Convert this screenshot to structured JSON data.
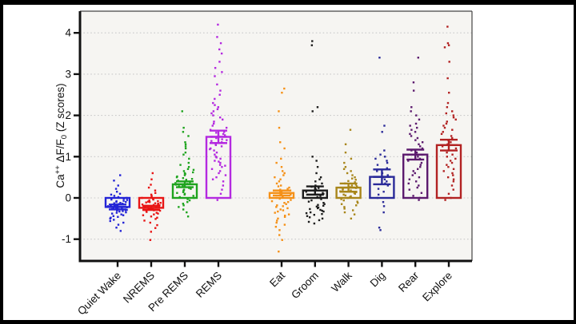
{
  "figure": {
    "frame_color": "#000000",
    "background": "#ffffff",
    "panel_background": "#f6f5f2",
    "gridline_color": "#c9c9c9",
    "axis_color": "#111111"
  },
  "chart_data": {
    "type": "bar",
    "overlay": "jittered-scatter-points",
    "title": "",
    "xlabel": "",
    "ylabel": "Ca++ ΔF/F0 (Z scores)",
    "ylabel_parts": {
      "pre": "Ca",
      "sup": "++",
      "mid": " ΔF/F",
      "sub": "0",
      "post": " (Z scores)"
    },
    "ylim": [
      -1.55,
      4.55
    ],
    "yticks": [
      4,
      3,
      2,
      1,
      0,
      -1
    ],
    "grid": "horizontal-dotted",
    "legend": "none",
    "bar_style": "open-outline-with-sem-error-bars",
    "group_break_after_index": 3,
    "categories": [
      {
        "key": "quiet_wake",
        "label": "Quiet Wake",
        "color": "#2323d6",
        "mean": -0.22,
        "sem": 0.06,
        "points": [
          0.55,
          0.42,
          0.3,
          0.22,
          0.15,
          0.1,
          0.08,
          0.05,
          0.02,
          0,
          -0.02,
          -0.04,
          -0.05,
          -0.07,
          -0.08,
          -0.1,
          -0.1,
          -0.12,
          -0.13,
          -0.14,
          -0.15,
          -0.16,
          -0.17,
          -0.18,
          -0.19,
          -0.2,
          -0.2,
          -0.21,
          -0.22,
          -0.23,
          -0.24,
          -0.25,
          -0.26,
          -0.27,
          -0.28,
          -0.29,
          -0.3,
          -0.31,
          -0.32,
          -0.33,
          -0.35,
          -0.36,
          -0.38,
          -0.4,
          -0.42,
          -0.44,
          -0.46,
          -0.48,
          -0.5,
          -0.53,
          -0.56,
          -0.6,
          -0.65,
          -0.72,
          -0.8
        ]
      },
      {
        "key": "nrems",
        "label": "NREMS",
        "color": "#e81414",
        "mean": -0.24,
        "sem": 0.05,
        "points": [
          0.6,
          0.45,
          0.32,
          0.25,
          0.18,
          0.12,
          0.08,
          0.05,
          0.02,
          0,
          -0.02,
          -0.04,
          -0.06,
          -0.08,
          -0.09,
          -0.1,
          -0.11,
          -0.12,
          -0.13,
          -0.14,
          -0.15,
          -0.16,
          -0.17,
          -0.18,
          -0.19,
          -0.2,
          -0.21,
          -0.22,
          -0.23,
          -0.24,
          -0.25,
          -0.26,
          -0.27,
          -0.28,
          -0.29,
          -0.3,
          -0.31,
          -0.32,
          -0.34,
          -0.36,
          -0.38,
          -0.4,
          -0.42,
          -0.45,
          -0.48,
          -0.51,
          -0.55,
          -0.6,
          -0.66,
          -0.73,
          -0.82,
          -1.02
        ]
      },
      {
        "key": "pre_rems",
        "label": "Pre REMS",
        "color": "#1ea41e",
        "mean": 0.33,
        "sem": 0.07,
        "points": [
          2.1,
          1.7,
          1.6,
          1.5,
          1.35,
          1.3,
          1.25,
          1.2,
          1.1,
          1.05,
          0.95,
          0.85,
          0.8,
          0.75,
          0.7,
          0.68,
          0.65,
          0.62,
          0.6,
          0.58,
          0.55,
          0.52,
          0.5,
          0.48,
          0.46,
          0.44,
          0.42,
          0.4,
          0.38,
          0.36,
          0.34,
          0.32,
          0.3,
          0.28,
          0.26,
          0.24,
          0.22,
          0.2,
          0.18,
          0.16,
          0.14,
          0.12,
          0.1,
          0.08,
          0.05,
          0.02,
          0,
          -0.03,
          -0.06,
          -0.1,
          -0.14,
          -0.18,
          -0.22,
          -0.28,
          -0.35,
          -0.45
        ]
      },
      {
        "key": "rems",
        "label": "REMS",
        "color": "#b429e0",
        "mean": 1.48,
        "sem": 0.15,
        "points": [
          4.2,
          3.9,
          3.75,
          3.6,
          3.5,
          3.3,
          3.15,
          3.05,
          2.95,
          2.75,
          2.6,
          2.5,
          2.4,
          2.3,
          2.25,
          2.2,
          2.15,
          2.1,
          2.05,
          2,
          1.95,
          1.9,
          1.85,
          1.8,
          1.75,
          1.7,
          1.65,
          1.6,
          1.58,
          1.55,
          1.52,
          1.5,
          1.48,
          1.45,
          1.42,
          1.4,
          1.38,
          1.35,
          1.3,
          1.28,
          1.25,
          1.2,
          1.18,
          1.15,
          1.1,
          1.05,
          1,
          0.98,
          0.95,
          0.9,
          0.88,
          0.85,
          0.8,
          0.78,
          0.75,
          0.7,
          0.65,
          0.6,
          0.55,
          0.5,
          0.45,
          0.4,
          0.3,
          0.2,
          0.1,
          -0.05
        ]
      },
      {
        "key": "eat",
        "label": "Eat",
        "color": "#f59118",
        "mean": 0.12,
        "sem": 0.06,
        "points": [
          2.65,
          2.55,
          2.1,
          1.7,
          1.35,
          1.2,
          0.95,
          0.85,
          0.75,
          0.65,
          0.6,
          0.55,
          0.5,
          0.45,
          0.4,
          0.35,
          0.3,
          0.28,
          0.25,
          0.22,
          0.2,
          0.18,
          0.15,
          0.12,
          0.1,
          0.08,
          0.06,
          0.04,
          0.02,
          0,
          -0.02,
          -0.05,
          -0.08,
          -0.1,
          -0.12,
          -0.15,
          -0.18,
          -0.2,
          -0.22,
          -0.25,
          -0.28,
          -0.3,
          -0.33,
          -0.36,
          -0.4,
          -0.43,
          -0.46,
          -0.5,
          -0.55,
          -0.6,
          -0.65,
          -0.7,
          -0.78,
          -0.9,
          -1.02,
          -1.3
        ]
      },
      {
        "key": "groom",
        "label": "Groom",
        "color": "#1c1c1c",
        "mean": 0.18,
        "sem": 0.1,
        "points": [
          3.8,
          3.7,
          2.2,
          2.1,
          1,
          0.9,
          0.75,
          0.6,
          0.5,
          0.45,
          0.4,
          0.35,
          0.3,
          0.27,
          0.24,
          0.21,
          0.18,
          0.15,
          0.12,
          0.1,
          0.08,
          0.05,
          0.02,
          0,
          -0.03,
          -0.06,
          -0.09,
          -0.12,
          -0.15,
          -0.17,
          -0.19,
          -0.21,
          -0.23,
          -0.25,
          -0.27,
          -0.29,
          -0.31,
          -0.33,
          -0.35,
          -0.37,
          -0.39,
          -0.41,
          -0.44,
          -0.47,
          -0.5,
          -0.54,
          -0.58,
          -0.62
        ]
      },
      {
        "key": "walk",
        "label": "Walk",
        "color": "#a8861a",
        "mean": 0.25,
        "sem": 0.1,
        "points": [
          1.65,
          1.3,
          1.1,
          0.95,
          0.85,
          0.75,
          0.7,
          0.65,
          0.6,
          0.55,
          0.5,
          0.47,
          0.44,
          0.41,
          0.38,
          0.35,
          0.32,
          0.3,
          0.28,
          0.26,
          0.24,
          0.22,
          0.2,
          0.18,
          0.16,
          0.14,
          0.12,
          0.1,
          0.08,
          0.06,
          0.04,
          0.02,
          0,
          -0.03,
          -0.06,
          -0.09,
          -0.12,
          -0.15,
          -0.18,
          -0.22,
          -0.26,
          -0.3,
          -0.35,
          -0.4,
          -0.5
        ]
      },
      {
        "key": "dig",
        "label": "Dig",
        "color": "#2a2a99",
        "mean": 0.51,
        "sem": 0.18,
        "points": [
          3.4,
          1.75,
          1.6,
          1.15,
          1.05,
          1,
          0.95,
          0.9,
          0.85,
          0.8,
          0.72,
          0.65,
          0.6,
          0.55,
          0.5,
          0.45,
          0.4,
          0.35,
          0.3,
          0.22,
          0.15,
          0.08,
          0,
          -0.1,
          -0.2,
          -0.35,
          -0.72,
          -0.78
        ]
      },
      {
        "key": "rear",
        "label": "Rear",
        "color": "#5c1a6e",
        "mean": 1.05,
        "sem": 0.12,
        "points": [
          3.4,
          2.8,
          2.6,
          2.2,
          2.1,
          2,
          1.9,
          1.8,
          1.75,
          1.7,
          1.65,
          1.6,
          1.55,
          1.5,
          1.45,
          1.4,
          1.35,
          1.3,
          1.25,
          1.2,
          1.15,
          1.1,
          1.05,
          1,
          0.95,
          0.9,
          0.85,
          0.8,
          0.75,
          0.7,
          0.65,
          0.6,
          0.55,
          0.5,
          0.45,
          0.4,
          0.35,
          0.3,
          0.25,
          0.2,
          0.12,
          0.05,
          0,
          -0.05
        ]
      },
      {
        "key": "explore",
        "label": "Explore",
        "color": "#b22222",
        "mean": 1.28,
        "sem": 0.13,
        "points": [
          4.15,
          3.75,
          3.7,
          3.65,
          3.3,
          2.9,
          2.55,
          2.3,
          2.2,
          2.1,
          2.05,
          2,
          1.95,
          1.9,
          1.85,
          1.8,
          1.75,
          1.7,
          1.65,
          1.6,
          1.55,
          1.5,
          1.45,
          1.4,
          1.35,
          1.3,
          1.28,
          1.25,
          1.2,
          1.15,
          1.1,
          1.05,
          1,
          0.95,
          0.9,
          0.85,
          0.8,
          0.75,
          0.7,
          0.65,
          0.6,
          0.55,
          0.5,
          0.45,
          0.4,
          0.3,
          0.2,
          0.1,
          0,
          -0.05
        ]
      }
    ]
  }
}
